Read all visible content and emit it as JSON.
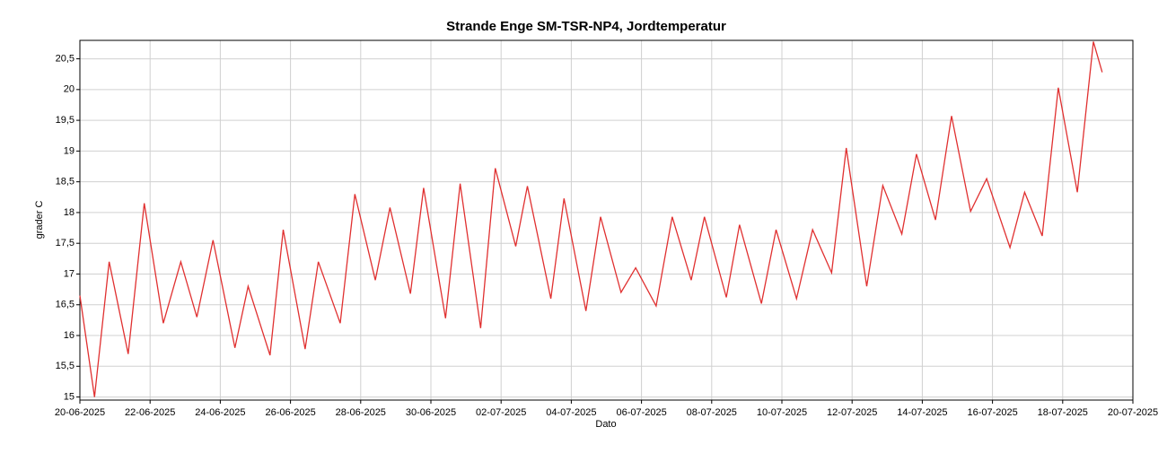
{
  "chart_data": {
    "type": "line",
    "title": "Strande Enge SM-TSR-NP4, Jordtemperatur",
    "xlabel": "Dato",
    "ylabel": "grader C",
    "x": [
      "2025-06-20T00:00",
      "2025-06-20T10:00",
      "2025-06-20T20:00",
      "2025-06-21T09:00",
      "2025-06-21T20:00",
      "2025-06-22T09:00",
      "2025-06-22T21:00",
      "2025-06-23T08:00",
      "2025-06-23T19:00",
      "2025-06-24T10:00",
      "2025-06-24T19:00",
      "2025-06-25T10:00",
      "2025-06-25T19:00",
      "2025-06-26T10:00",
      "2025-06-26T19:00",
      "2025-06-27T10:00",
      "2025-06-27T20:00",
      "2025-06-28T10:00",
      "2025-06-28T20:00",
      "2025-06-29T10:00",
      "2025-06-29T19:00",
      "2025-06-30T10:00",
      "2025-06-30T20:00",
      "2025-07-01T10:00",
      "2025-07-01T20:00",
      "2025-07-02T10:00",
      "2025-07-02T18:00",
      "2025-07-03T10:00",
      "2025-07-03T19:00",
      "2025-07-04T10:00",
      "2025-07-04T20:00",
      "2025-07-05T10:00",
      "2025-07-05T20:00",
      "2025-07-06T10:00",
      "2025-07-06T21:00",
      "2025-07-07T10:00",
      "2025-07-07T19:00",
      "2025-07-08T10:00",
      "2025-07-08T19:00",
      "2025-07-09T10:00",
      "2025-07-09T20:00",
      "2025-07-10T10:00",
      "2025-07-10T21:00",
      "2025-07-11T10:00",
      "2025-07-11T20:00",
      "2025-07-12T10:00",
      "2025-07-12T21:00",
      "2025-07-13T10:00",
      "2025-07-13T20:00",
      "2025-07-14T09:00",
      "2025-07-14T20:00",
      "2025-07-15T09:00",
      "2025-07-15T20:00",
      "2025-07-16T12:00",
      "2025-07-16T22:00",
      "2025-07-17T10:00",
      "2025-07-17T21:00",
      "2025-07-18T10:00",
      "2025-07-18T21:00",
      "2025-07-19T03:00"
    ],
    "series": [
      {
        "color": "#e03030",
        "values": [
          16.65,
          15.0,
          17.2,
          15.7,
          18.15,
          16.2,
          17.2,
          16.3,
          17.55,
          15.8,
          16.8,
          15.68,
          17.72,
          15.78,
          17.2,
          16.2,
          18.3,
          16.9,
          18.08,
          16.68,
          18.4,
          16.28,
          18.47,
          16.12,
          18.72,
          17.45,
          18.43,
          16.6,
          18.23,
          16.4,
          17.93,
          16.7,
          17.1,
          16.48,
          17.93,
          16.9,
          17.93,
          16.62,
          17.8,
          16.52,
          17.72,
          16.6,
          17.72,
          17.02,
          19.05,
          16.8,
          18.44,
          17.65,
          18.95,
          17.88,
          19.57,
          18.02,
          18.55,
          17.43,
          18.33,
          17.62,
          20.03,
          18.33,
          20.78,
          20.28
        ]
      }
    ],
    "xlim": [
      "2025-06-20",
      "2025-07-20"
    ],
    "xticks": [
      {
        "value": "2025-06-20",
        "label": "20-06-2025"
      },
      {
        "value": "2025-06-22",
        "label": "22-06-2025"
      },
      {
        "value": "2025-06-24",
        "label": "24-06-2025"
      },
      {
        "value": "2025-06-26",
        "label": "26-06-2025"
      },
      {
        "value": "2025-06-28",
        "label": "28-06-2025"
      },
      {
        "value": "2025-06-30",
        "label": "30-06-2025"
      },
      {
        "value": "2025-07-02",
        "label": "02-07-2025"
      },
      {
        "value": "2025-07-04",
        "label": "04-07-2025"
      },
      {
        "value": "2025-07-06",
        "label": "06-07-2025"
      },
      {
        "value": "2025-07-08",
        "label": "08-07-2025"
      },
      {
        "value": "2025-07-10",
        "label": "10-07-2025"
      },
      {
        "value": "2025-07-12",
        "label": "12-07-2025"
      },
      {
        "value": "2025-07-14",
        "label": "14-07-2025"
      },
      {
        "value": "2025-07-16",
        "label": "16-07-2025"
      },
      {
        "value": "2025-07-18",
        "label": "18-07-2025"
      },
      {
        "value": "2025-07-20",
        "label": "20-07-2025"
      }
    ],
    "ylim": [
      14.95,
      20.8
    ],
    "yticks": [
      15,
      {
        "value": 15.5,
        "label": "15,5"
      },
      16,
      {
        "value": 16.5,
        "label": "16,5"
      },
      17,
      {
        "value": 17.5,
        "label": "17,5"
      },
      18,
      {
        "value": 18.5,
        "label": "18,5"
      },
      19,
      {
        "value": 19.5,
        "label": "19,5"
      },
      20,
      {
        "value": 20.5,
        "label": "20,5"
      }
    ],
    "grid": true
  }
}
